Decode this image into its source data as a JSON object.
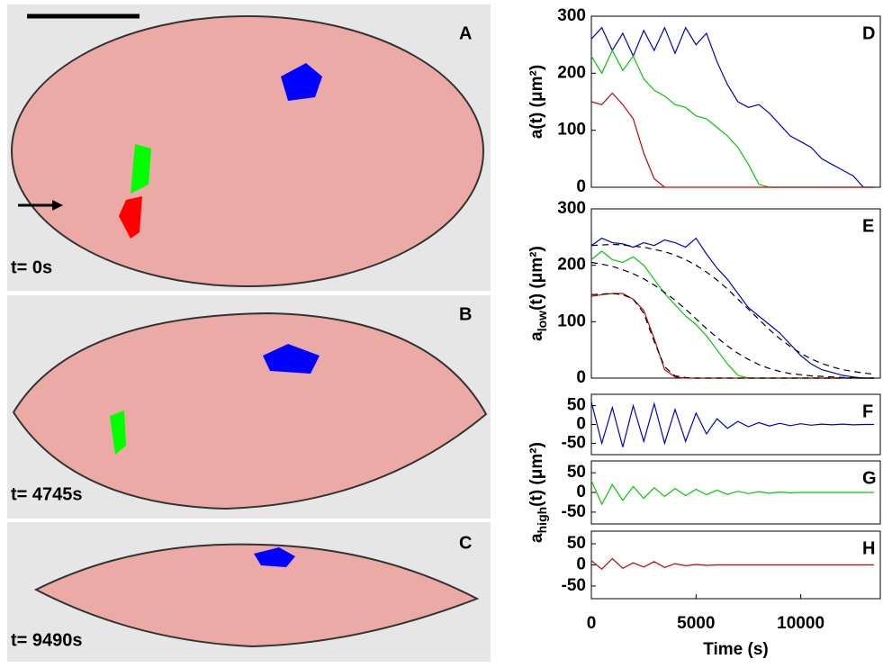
{
  "panels": [
    {
      "label": "A",
      "time": "t= 0s"
    },
    {
      "label": "B",
      "time": "t= 4745s"
    },
    {
      "label": "C",
      "time": "t= 9490s"
    }
  ],
  "chart_data": [
    {
      "type": "line",
      "label": "D",
      "ylabel": {
        "main": "a(t) (μm²)"
      },
      "x": [
        0,
        500,
        1000,
        1500,
        2000,
        2500,
        3000,
        3500,
        4000,
        4500,
        5000,
        5500,
        6000,
        6500,
        7000,
        7500,
        8000,
        8500,
        9000,
        9500,
        10000,
        10500,
        11000,
        11500,
        12000,
        12500,
        13000,
        13500
      ],
      "xlim": [
        0,
        13800
      ],
      "ylim": [
        0,
        300
      ],
      "yticks": [
        0,
        100,
        200,
        300
      ],
      "series": [
        {
          "color": "#0000cc",
          "values": [
            260,
            280,
            240,
            270,
            230,
            275,
            240,
            280,
            235,
            280,
            250,
            270,
            220,
            180,
            150,
            140,
            145,
            130,
            110,
            90,
            80,
            70,
            50,
            40,
            30,
            20,
            0,
            0
          ]
        },
        {
          "color": "#00cc00",
          "values": [
            230,
            200,
            240,
            205,
            230,
            190,
            170,
            160,
            145,
            140,
            125,
            120,
            105,
            90,
            70,
            40,
            5,
            0,
            0,
            0,
            0,
            0,
            0,
            0,
            0,
            0,
            0,
            0
          ]
        },
        {
          "color": "#cc0000",
          "values": [
            150,
            145,
            165,
            145,
            120,
            60,
            15,
            0,
            0,
            0,
            0,
            0,
            0,
            0,
            0,
            0,
            0,
            0,
            0,
            0,
            0,
            0,
            0,
            0,
            0,
            0,
            0,
            0
          ]
        }
      ]
    },
    {
      "type": "line",
      "label": "E",
      "ylabel": {
        "main": "a",
        "sub": "low",
        "rest": "(t) (μm²)"
      },
      "x": [
        0,
        500,
        1000,
        1500,
        2000,
        2500,
        3000,
        3500,
        4000,
        4500,
        5000,
        5500,
        6000,
        6500,
        7000,
        7500,
        8000,
        8500,
        9000,
        9500,
        10000,
        10500,
        11000,
        11500,
        12000,
        12500,
        13000,
        13500
      ],
      "xlim": [
        0,
        13800
      ],
      "ylim": [
        0,
        300
      ],
      "yticks": [
        0,
        100,
        200,
        300
      ],
      "series": [
        {
          "color": "#0000cc",
          "values": [
            235,
            248,
            240,
            238,
            232,
            240,
            235,
            245,
            240,
            232,
            248,
            220,
            195,
            175,
            150,
            125,
            110,
            95,
            80,
            60,
            40,
            25,
            15,
            10,
            5,
            2,
            0,
            0
          ]
        },
        {
          "color": "#00cc00",
          "values": [
            210,
            225,
            210,
            205,
            215,
            200,
            175,
            150,
            130,
            110,
            95,
            75,
            50,
            25,
            5,
            0,
            0,
            0,
            0,
            0,
            0,
            0,
            0,
            0,
            0,
            0,
            0,
            0
          ]
        },
        {
          "color": "#cc0000",
          "values": [
            145,
            148,
            150,
            150,
            140,
            120,
            70,
            15,
            2,
            0,
            0,
            0,
            0,
            0,
            0,
            0,
            0,
            0,
            0,
            0,
            0,
            0,
            0,
            0,
            0,
            0,
            0,
            0
          ]
        },
        {
          "color": "#000000",
          "dashed": true,
          "values": [
            235,
            236,
            237,
            236,
            234,
            232,
            228,
            224,
            218,
            210,
            200,
            188,
            174,
            158,
            140,
            122,
            104,
            86,
            70,
            56,
            44,
            34,
            26,
            20,
            15,
            12,
            9,
            7
          ]
        },
        {
          "color": "#000000",
          "dashed": true,
          "values": [
            205,
            202,
            198,
            192,
            185,
            176,
            165,
            152,
            138,
            122,
            105,
            88,
            72,
            57,
            44,
            33,
            24,
            17,
            12,
            8,
            6,
            4,
            3,
            2,
            1,
            1,
            0,
            0
          ]
        },
        {
          "color": "#000000",
          "dashed": true,
          "values": [
            148,
            149,
            150,
            148,
            140,
            115,
            65,
            20,
            4,
            1,
            0,
            0,
            0,
            0,
            0,
            0,
            0,
            0,
            0,
            0,
            0,
            0,
            0,
            0,
            0,
            0,
            0,
            0
          ]
        }
      ]
    },
    {
      "type": "line",
      "label": "F",
      "x": [
        0,
        500,
        1000,
        1500,
        2000,
        2500,
        3000,
        3500,
        4000,
        4500,
        5000,
        5500,
        6000,
        6500,
        7000,
        7500,
        8000,
        8500,
        9000,
        9500,
        10000,
        10500,
        11000,
        11500,
        12000,
        12500,
        13000,
        13500
      ],
      "xlim": [
        0,
        13800
      ],
      "ylim": [
        -80,
        80
      ],
      "yticks": [
        -50,
        0,
        50
      ],
      "series": [
        {
          "color": "#0000cc",
          "values": [
            60,
            -50,
            45,
            -60,
            50,
            -45,
            55,
            -50,
            40,
            -45,
            30,
            -25,
            15,
            -10,
            8,
            -6,
            5,
            -4,
            3,
            -3,
            2,
            -2,
            1,
            -1,
            1,
            -1,
            0,
            0
          ]
        }
      ]
    },
    {
      "type": "line",
      "label": "G",
      "ylabel": {
        "main": "a",
        "sub": "high",
        "rest": "(t) (μm²)"
      },
      "x": [
        0,
        500,
        1000,
        1500,
        2000,
        2500,
        3000,
        3500,
        4000,
        4500,
        5000,
        5500,
        6000,
        6500,
        7000,
        7500,
        8000,
        8500,
        9000,
        9500,
        10000,
        10500,
        11000,
        11500,
        12000,
        12500,
        13000,
        13500
      ],
      "xlim": [
        0,
        13800
      ],
      "ylim": [
        -80,
        80
      ],
      "yticks": [
        -50,
        0,
        50
      ],
      "series": [
        {
          "color": "#00cc00",
          "values": [
            30,
            -30,
            20,
            -20,
            15,
            -15,
            12,
            -10,
            10,
            -8,
            8,
            -6,
            6,
            -5,
            3,
            -3,
            2,
            -2,
            1,
            -1,
            0,
            0,
            0,
            0,
            0,
            0,
            0,
            0
          ]
        }
      ]
    },
    {
      "type": "line",
      "label": "H",
      "xlabel": "Time (s)",
      "x": [
        0,
        500,
        1000,
        1500,
        2000,
        2500,
        3000,
        3500,
        4000,
        4500,
        5000,
        5500,
        6000,
        6500,
        7000,
        7500,
        8000,
        8500,
        9000,
        9500,
        10000,
        10500,
        11000,
        11500,
        12000,
        12500,
        13000,
        13500
      ],
      "xlim": [
        0,
        13800
      ],
      "xticks": [
        0,
        5000,
        10000
      ],
      "ylim": [
        -80,
        80
      ],
      "yticks": [
        -50,
        0,
        50
      ],
      "series": [
        {
          "color": "#cc0000",
          "values": [
            10,
            -10,
            15,
            -8,
            5,
            -5,
            8,
            -6,
            3,
            -2,
            1,
            -1,
            0,
            0,
            0,
            0,
            0,
            0,
            0,
            0,
            0,
            0,
            0,
            0,
            0,
            0,
            0,
            0
          ]
        }
      ]
    }
  ]
}
